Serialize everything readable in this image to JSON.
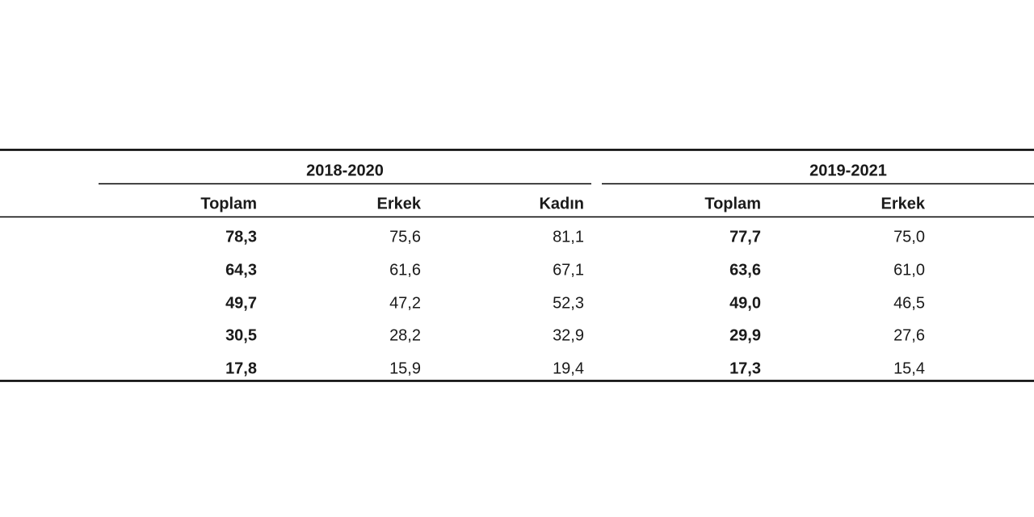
{
  "table": {
    "groups": [
      {
        "title": "2018-2020",
        "columns": [
          "Toplam",
          "Erkek",
          "Kadın"
        ]
      },
      {
        "title": "2019-2021",
        "columns": [
          "Toplam",
          "Erkek"
        ]
      }
    ],
    "rows": [
      [
        "78,3",
        "75,6",
        "81,1",
        "77,7",
        "75,0"
      ],
      [
        "64,3",
        "61,6",
        "67,1",
        "63,6",
        "61,0"
      ],
      [
        "49,7",
        "47,2",
        "52,3",
        "49,0",
        "46,5"
      ],
      [
        "30,5",
        "28,2",
        "32,9",
        "29,9",
        "27,6"
      ],
      [
        "17,8",
        "15,9",
        "19,4",
        "17,3",
        "15,4"
      ]
    ]
  }
}
